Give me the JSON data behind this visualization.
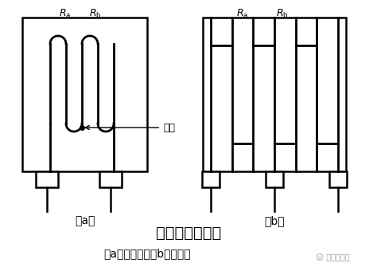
{
  "title": "金属丝式应变片",
  "subtitle": "（a）回线式；（b）短接式",
  "label_a": "（a）",
  "label_b": "（b）",
  "weld_label": "焊点",
  "watermark": "传感器技术",
  "bg_color": "#ffffff",
  "line_color": "#000000",
  "fig_width": 4.74,
  "fig_height": 3.5,
  "dpi": 100
}
